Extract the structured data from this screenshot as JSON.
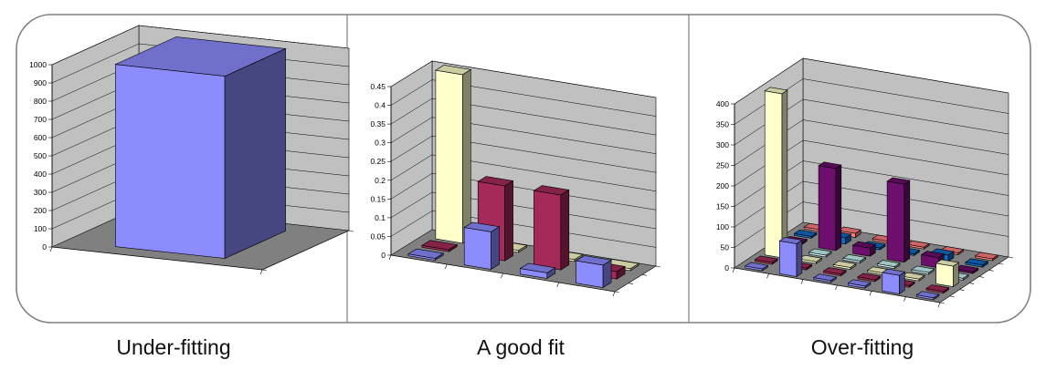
{
  "colors": {
    "wall": "#c0c0c0",
    "floor": "#808080",
    "grid": "#000000",
    "panel_border": "#808080",
    "blue": "#8c8cff",
    "cream": "#ffffcc",
    "maroon": "#a52a5a",
    "light_cyan": "#c8f5f5",
    "purple": "#6e0f6e",
    "mid_blue": "#0f6bc8",
    "salmon": "#ff8080"
  },
  "captions": [
    "Under-fitting",
    "A good fit",
    "Over-fitting"
  ],
  "chart_data": [
    {
      "type": "bar",
      "subtype": "3d-column-grid",
      "title": "Under-fitting",
      "ylim": [
        0,
        1000
      ],
      "yticks": [
        "0",
        "100",
        "200",
        "300",
        "400",
        "500",
        "600",
        "700",
        "800",
        "900",
        "1000"
      ],
      "grid": true,
      "bars": [
        {
          "row": 0,
          "col": 0,
          "value": 1000,
          "color": "blue"
        }
      ]
    },
    {
      "type": "bar",
      "subtype": "3d-column-grid",
      "title": "A good fit",
      "ylim": [
        0,
        0.45
      ],
      "yticks": [
        "0",
        "0.05",
        "0.1",
        "0.15",
        "0.2",
        "0.25",
        "0.3",
        "0.35",
        "0.4",
        "0.45"
      ],
      "grid": true,
      "bars": [
        {
          "row": 0,
          "col": 0,
          "value": 0.005,
          "color": "blue"
        },
        {
          "row": 0,
          "col": 1,
          "value": 0.1,
          "color": "blue"
        },
        {
          "row": 0,
          "col": 2,
          "value": 0.015,
          "color": "blue"
        },
        {
          "row": 0,
          "col": 3,
          "value": 0.06,
          "color": "blue"
        },
        {
          "row": 1,
          "col": 0,
          "value": 0.005,
          "color": "maroon"
        },
        {
          "row": 1,
          "col": 1,
          "value": 0.2,
          "color": "maroon"
        },
        {
          "row": 1,
          "col": 2,
          "value": 0.2,
          "color": "maroon"
        },
        {
          "row": 1,
          "col": 3,
          "value": 0.02,
          "color": "maroon"
        },
        {
          "row": 2,
          "col": 0,
          "value": 0.45,
          "color": "cream"
        },
        {
          "row": 2,
          "col": 1,
          "value": 0.005,
          "color": "cream"
        },
        {
          "row": 2,
          "col": 2,
          "value": 0.005,
          "color": "cream"
        },
        {
          "row": 2,
          "col": 3,
          "value": 0.005,
          "color": "cream"
        }
      ]
    },
    {
      "type": "bar",
      "subtype": "3d-column-grid",
      "title": "Over-fitting",
      "ylim": [
        0,
        400
      ],
      "yticks": [
        "0",
        "50",
        "100",
        "150",
        "200",
        "250",
        "300",
        "350",
        "400"
      ],
      "grid": true,
      "bars": [
        {
          "row": 0,
          "col": 0,
          "value": 3,
          "color": "blue"
        },
        {
          "row": 0,
          "col": 1,
          "value": 80,
          "color": "blue"
        },
        {
          "row": 0,
          "col": 2,
          "value": 3,
          "color": "blue"
        },
        {
          "row": 0,
          "col": 3,
          "value": 5,
          "color": "blue"
        },
        {
          "row": 0,
          "col": 4,
          "value": 45,
          "color": "blue"
        },
        {
          "row": 0,
          "col": 5,
          "value": 3,
          "color": "blue"
        },
        {
          "row": 1,
          "col": 0,
          "value": 3,
          "color": "maroon"
        },
        {
          "row": 1,
          "col": 1,
          "value": 3,
          "color": "maroon"
        },
        {
          "row": 1,
          "col": 2,
          "value": 3,
          "color": "maroon"
        },
        {
          "row": 1,
          "col": 3,
          "value": 3,
          "color": "maroon"
        },
        {
          "row": 1,
          "col": 4,
          "value": 3,
          "color": "maroon"
        },
        {
          "row": 1,
          "col": 5,
          "value": 3,
          "color": "maroon"
        },
        {
          "row": 2,
          "col": 0,
          "value": 400,
          "color": "cream"
        },
        {
          "row": 2,
          "col": 1,
          "value": 3,
          "color": "cream"
        },
        {
          "row": 2,
          "col": 2,
          "value": 3,
          "color": "cream"
        },
        {
          "row": 2,
          "col": 3,
          "value": 3,
          "color": "cream"
        },
        {
          "row": 2,
          "col": 4,
          "value": 3,
          "color": "cream"
        },
        {
          "row": 2,
          "col": 5,
          "value": 50,
          "color": "cream"
        },
        {
          "row": 3,
          "col": 0,
          "value": 3,
          "color": "light_cyan"
        },
        {
          "row": 3,
          "col": 1,
          "value": 3,
          "color": "light_cyan"
        },
        {
          "row": 3,
          "col": 2,
          "value": 3,
          "color": "light_cyan"
        },
        {
          "row": 3,
          "col": 3,
          "value": 3,
          "color": "light_cyan"
        },
        {
          "row": 3,
          "col": 4,
          "value": 3,
          "color": "light_cyan"
        },
        {
          "row": 3,
          "col": 5,
          "value": 3,
          "color": "light_cyan"
        },
        {
          "row": 4,
          "col": 0,
          "value": 3,
          "color": "purple"
        },
        {
          "row": 4,
          "col": 1,
          "value": 200,
          "color": "purple"
        },
        {
          "row": 4,
          "col": 2,
          "value": 20,
          "color": "purple"
        },
        {
          "row": 4,
          "col": 3,
          "value": 190,
          "color": "purple"
        },
        {
          "row": 4,
          "col": 4,
          "value": 25,
          "color": "purple"
        },
        {
          "row": 4,
          "col": 5,
          "value": 3,
          "color": "purple"
        },
        {
          "row": 5,
          "col": 0,
          "value": 3,
          "color": "mid_blue"
        },
        {
          "row": 5,
          "col": 1,
          "value": 15,
          "color": "mid_blue"
        },
        {
          "row": 5,
          "col": 2,
          "value": 3,
          "color": "mid_blue"
        },
        {
          "row": 5,
          "col": 3,
          "value": 3,
          "color": "mid_blue"
        },
        {
          "row": 5,
          "col": 4,
          "value": 15,
          "color": "mid_blue"
        },
        {
          "row": 5,
          "col": 5,
          "value": 5,
          "color": "mid_blue"
        },
        {
          "row": 6,
          "col": 0,
          "value": 3,
          "color": "salmon"
        },
        {
          "row": 6,
          "col": 1,
          "value": 10,
          "color": "salmon"
        },
        {
          "row": 6,
          "col": 2,
          "value": 3,
          "color": "salmon"
        },
        {
          "row": 6,
          "col": 3,
          "value": 3,
          "color": "salmon"
        },
        {
          "row": 6,
          "col": 4,
          "value": 3,
          "color": "salmon"
        },
        {
          "row": 6,
          "col": 5,
          "value": 3,
          "color": "salmon"
        }
      ]
    }
  ]
}
